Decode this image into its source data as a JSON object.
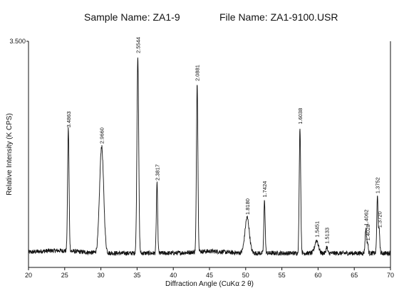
{
  "header": {
    "sample_label": "Sample Name: ZA1-9",
    "file_label": "File Name: ZA1-9100.USR"
  },
  "colors": {
    "trace": "#111111",
    "axis": "#111111",
    "background": "#ffffff"
  },
  "chart_data": {
    "type": "line",
    "title": "",
    "xlabel": "Diffraction Angle  (CuKα 2 θ)",
    "ylabel": "Relative Intensity (K CPS)",
    "xlim": [
      20,
      70
    ],
    "ylim": [
      0,
      3.5
    ],
    "ytick_labels": [
      {
        "value": 3.5,
        "label": "3.500"
      }
    ],
    "xticks": [
      20,
      25,
      30,
      35,
      40,
      45,
      50,
      55,
      60,
      65,
      70
    ],
    "grid": false,
    "baseline": 0.22,
    "series": [
      {
        "peaks": [
          {
            "x": 25.5,
            "y": 1.9,
            "label": "3.4863",
            "width": 0.1
          },
          {
            "x": 30.1,
            "y": 1.65,
            "label": "2.9660",
            "width": 0.28
          },
          {
            "x": 35.1,
            "y": 3.05,
            "label": "2.5544",
            "width": 0.12
          },
          {
            "x": 37.75,
            "y": 1.08,
            "label": "2.3817",
            "width": 0.09
          },
          {
            "x": 43.3,
            "y": 2.62,
            "label": "2.0881",
            "width": 0.1
          },
          {
            "x": 50.2,
            "y": 0.55,
            "label": "1.8180",
            "width": 0.3
          },
          {
            "x": 52.6,
            "y": 0.82,
            "label": "1.7424",
            "width": 0.09
          },
          {
            "x": 57.5,
            "y": 1.95,
            "label": "1.6038",
            "width": 0.1
          },
          {
            "x": 59.8,
            "y": 0.2,
            "label": "1.5451",
            "width": 0.25
          },
          {
            "x": 61.2,
            "y": 0.1,
            "label": "1.5133",
            "width": 0.1
          },
          {
            "x": 66.6,
            "y": 0.38,
            "label": "1.4062",
            "width": 0.1
          },
          {
            "x": 66.85,
            "y": 0.15,
            "label": "1.4028",
            "width": 0.08
          },
          {
            "x": 68.2,
            "y": 0.88,
            "label": "1.3752",
            "width": 0.09
          },
          {
            "x": 68.45,
            "y": 0.35,
            "label": "1.3720",
            "width": 0.08
          }
        ]
      }
    ]
  }
}
